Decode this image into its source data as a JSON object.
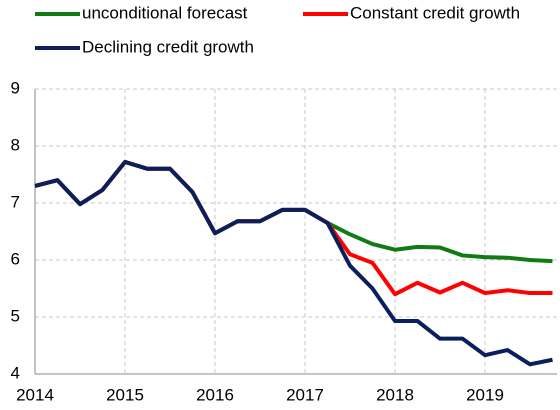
{
  "chart_data": {
    "type": "line",
    "x": [
      2014,
      2014.25,
      2014.5,
      2014.75,
      2015,
      2015.25,
      2015.5,
      2015.75,
      2016,
      2016.25,
      2016.5,
      2016.75,
      2017,
      2017.25,
      2017.5,
      2017.75,
      2018,
      2018.25,
      2018.5,
      2018.75,
      2019,
      2019.25,
      2019.5,
      2019.75
    ],
    "series": [
      {
        "name": "unconditional forecast",
        "color": "#127a12",
        "values": [
          7.3,
          7.4,
          6.98,
          7.23,
          7.72,
          7.6,
          7.6,
          7.19,
          6.47,
          6.68,
          6.68,
          6.88,
          6.88,
          6.65,
          6.45,
          6.28,
          6.18,
          6.23,
          6.22,
          6.08,
          6.05,
          6.04,
          6.0,
          5.98
        ]
      },
      {
        "name": "Constant credit growth",
        "color": "#ff0000",
        "values": [
          7.3,
          7.4,
          6.98,
          7.23,
          7.72,
          7.6,
          7.6,
          7.19,
          6.47,
          6.68,
          6.68,
          6.88,
          6.88,
          6.65,
          6.1,
          5.95,
          5.4,
          5.6,
          5.43,
          5.6,
          5.42,
          5.47,
          5.42,
          5.42
        ]
      },
      {
        "name": "Declining credit growth",
        "color": "#0b1f5c",
        "values": [
          7.3,
          7.4,
          6.98,
          7.23,
          7.72,
          7.6,
          7.6,
          7.19,
          6.47,
          6.68,
          6.68,
          6.88,
          6.88,
          6.65,
          5.9,
          5.5,
          4.93,
          4.93,
          4.62,
          4.62,
          4.33,
          4.42,
          4.17,
          4.25
        ]
      }
    ],
    "xlim": [
      2014,
      2019.8
    ],
    "xticks": [
      2014,
      2015,
      2016,
      2017,
      2018,
      2019
    ],
    "ylim": [
      4,
      9
    ],
    "yticks": [
      4,
      5,
      6,
      7,
      8,
      9
    ],
    "grid": true
  }
}
